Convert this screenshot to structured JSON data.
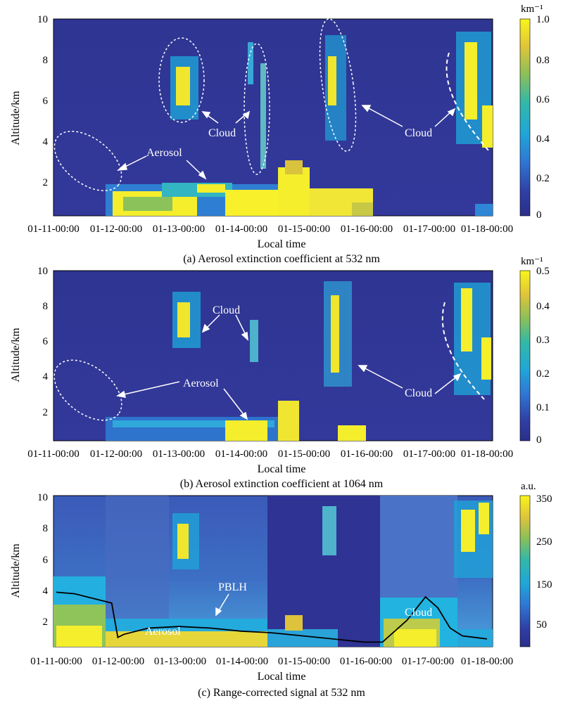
{
  "chart_data": [
    {
      "type": "heatmap",
      "caption": "(a) Aerosol extinction coefficient at 532 nm",
      "xlabel": "Local time",
      "ylabel": "Altitude/km",
      "xticks": [
        "01-11-00:00",
        "01-12-00:00",
        "01-13-00:00",
        "01-14-00:00",
        "01-15-00:00",
        "01-16-00:00",
        "01-17-00:00",
        "01-18-00:00"
      ],
      "yticks": [
        "2",
        "4",
        "6",
        "8",
        "10"
      ],
      "ylim": [
        0.3,
        10
      ],
      "colorbar": {
        "unit": "km⁻¹",
        "ticks": [
          "0",
          "0.2",
          "0.4",
          "0.6",
          "0.8",
          "1.0"
        ],
        "range": [
          0,
          1.0
        ]
      },
      "annotations": [
        "Aerosol",
        "Cloud",
        "Cloud"
      ],
      "features": [
        {
          "label": "Aerosol",
          "day_start": 0.2,
          "day_end": 1.1,
          "alt_bottom": 2.2,
          "alt_top": 4.6,
          "marker": "ellipse"
        },
        {
          "label": "Cloud",
          "day_start": 1.95,
          "day_end": 2.25,
          "alt_bottom": 5.0,
          "alt_top": 9.0,
          "marker": "ellipse"
        },
        {
          "label": "Cloud",
          "day_start": 3.1,
          "day_end": 3.35,
          "alt_bottom": 2.5,
          "alt_top": 9.0,
          "marker": "ellipse"
        },
        {
          "label": "Cloud",
          "day_start": 4.1,
          "day_end": 4.5,
          "alt_bottom": 3.5,
          "alt_top": 9.5,
          "marker": "ellipse"
        },
        {
          "label": "Cloud",
          "day_start": 6.6,
          "day_end": 7.0,
          "alt_bottom": 3.5,
          "alt_top": 9.5,
          "marker": "dashed-line"
        }
      ]
    },
    {
      "type": "heatmap",
      "caption": "(b) Aerosol extinction coefficient at 1064 nm",
      "xlabel": "Local time",
      "ylabel": "Altitude/km",
      "xticks": [
        "01-11-00:00",
        "01-12-00:00",
        "01-13-00:00",
        "01-14-00:00",
        "01-15-00:00",
        "01-16-00:00",
        "01-17-00:00",
        "01-18-00:00"
      ],
      "yticks": [
        "2",
        "4",
        "6",
        "8",
        "10"
      ],
      "ylim": [
        0.3,
        10
      ],
      "colorbar": {
        "unit": "km⁻¹",
        "ticks": [
          "0",
          "0.1",
          "0.2",
          "0.3",
          "0.4",
          "0.5"
        ],
        "range": [
          0,
          0.5
        ]
      },
      "annotations": [
        "Cloud",
        "Aerosol",
        "Cloud"
      ],
      "features": [
        {
          "label": "Aerosol",
          "day_start": 0.2,
          "day_end": 1.1,
          "alt_bottom": 1.5,
          "alt_top": 4.6,
          "marker": "ellipse"
        },
        {
          "label": "Cloud",
          "day_start": 6.6,
          "day_end": 7.0,
          "alt_bottom": 3.5,
          "alt_top": 9.5,
          "marker": "dashed-line"
        }
      ]
    },
    {
      "type": "heatmap",
      "caption": "(c) Range-corrected signal at 532 nm",
      "xlabel": "Local time",
      "ylabel": "Altitude/km",
      "xticks": [
        "01-11-00:00",
        "01-12-00:00",
        "01-13-00:00",
        "01-14-00:00",
        "01-15-00:00",
        "01-16-00:00",
        "01-17-00:00",
        "01-18-00:00"
      ],
      "yticks": [
        "2",
        "4",
        "6",
        "8",
        "10"
      ],
      "ylim": [
        0.3,
        10
      ],
      "colorbar": {
        "unit": "a.u.",
        "ticks": [
          "50",
          "150",
          "250",
          "350"
        ],
        "range": [
          0,
          350
        ]
      },
      "annotations": [
        "PBLH",
        "Aerosol",
        "Cloud"
      ],
      "series": [
        {
          "name": "PBLH",
          "x": [
            0.0,
            0.3,
            0.6,
            0.9,
            1.0,
            1.1,
            1.5,
            2.0,
            2.5,
            3.0,
            3.5,
            4.0,
            4.5,
            5.0,
            5.3,
            5.7,
            6.0,
            6.2,
            6.4,
            6.6,
            6.8,
            7.0
          ],
          "y": [
            3.8,
            3.7,
            3.4,
            3.1,
            0.9,
            1.1,
            1.5,
            1.6,
            1.5,
            1.3,
            1.2,
            1.0,
            0.8,
            0.6,
            0.6,
            2.0,
            3.5,
            2.8,
            1.5,
            1.0,
            0.9,
            0.8
          ]
        }
      ]
    }
  ]
}
